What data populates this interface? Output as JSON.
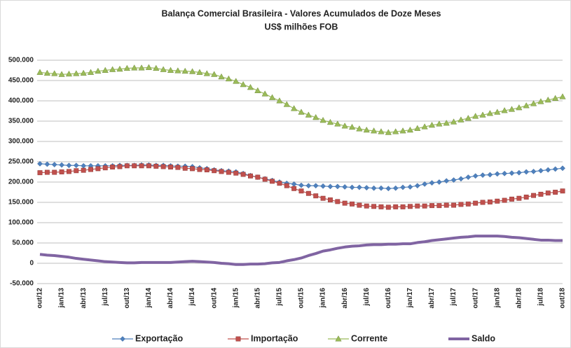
{
  "chart_data": {
    "type": "line",
    "title": "Balança Comercial Brasileira -  Valores Acumulados de Doze Meses",
    "subtitle": "US$ milhões FOB",
    "categories": [
      "out/12",
      null,
      null,
      "jan/13",
      null,
      null,
      "abr/13",
      null,
      null,
      "jul/13",
      null,
      null,
      "out/13",
      null,
      null,
      "jan/14",
      null,
      null,
      "abr/14",
      null,
      null,
      "jul/14",
      null,
      null,
      "out/14",
      null,
      null,
      "jan/15",
      null,
      null,
      "abr/15",
      null,
      null,
      "jul/15",
      null,
      null,
      "out/15",
      null,
      null,
      "jan/16",
      null,
      null,
      "abr/16",
      null,
      null,
      "jul/16",
      null,
      null,
      "out/16",
      null,
      null,
      "jan/17",
      null,
      null,
      "abr/17",
      null,
      null,
      "jul/17",
      null,
      null,
      "out/17",
      null,
      null,
      "jan/18",
      null,
      null,
      "abr/18",
      null,
      null,
      "jul/18",
      null,
      null,
      "out/18"
    ],
    "series": [
      {
        "name": "Exportação",
        "color": "#4f81bd",
        "marker": "diamond",
        "values": [
          245000,
          244000,
          243000,
          242000,
          241000,
          241000,
          240000,
          240000,
          240000,
          240000,
          240000,
          241000,
          241000,
          241000,
          242000,
          242000,
          241000,
          241000,
          240000,
          239000,
          239000,
          238000,
          235000,
          233000,
          230000,
          228000,
          227000,
          225000,
          221000,
          216000,
          212000,
          208000,
          204000,
          200000,
          197000,
          195000,
          192000,
          191000,
          191000,
          190000,
          189000,
          189000,
          188000,
          187000,
          187000,
          186000,
          185000,
          185000,
          184000,
          185000,
          187000,
          188000,
          191000,
          195000,
          198000,
          200000,
          203000,
          205000,
          208000,
          212000,
          215000,
          217000,
          218000,
          220000,
          221000,
          222000,
          223000,
          225000,
          226000,
          228000,
          230000,
          232000,
          234000
        ]
      },
      {
        "name": "Importação",
        "color": "#c0504d",
        "marker": "square",
        "values": [
          223000,
          224000,
          224000,
          225000,
          226000,
          228000,
          229000,
          231000,
          233000,
          235000,
          237000,
          238000,
          240000,
          240000,
          240000,
          240000,
          239000,
          238000,
          237000,
          236000,
          234000,
          233000,
          231000,
          230000,
          228000,
          226000,
          224000,
          222000,
          219000,
          215000,
          212000,
          207000,
          202000,
          197000,
          191000,
          184000,
          178000,
          172000,
          166000,
          160000,
          156000,
          152000,
          148000,
          146000,
          143000,
          141000,
          140000,
          139000,
          138000,
          139000,
          139000,
          140000,
          141000,
          141000,
          142000,
          142000,
          143000,
          143000,
          145000,
          146000,
          148000,
          150000,
          151000,
          153000,
          155000,
          158000,
          160000,
          163000,
          167000,
          170000,
          173000,
          175000,
          178000
        ]
      },
      {
        "name": "Corrente",
        "color": "#9bbb59",
        "marker": "triangle",
        "values": [
          470000,
          468000,
          467000,
          465000,
          466000,
          467000,
          468000,
          470000,
          473000,
          475000,
          477000,
          478000,
          480000,
          481000,
          481000,
          482000,
          480000,
          477000,
          475000,
          474000,
          473000,
          472000,
          470000,
          467000,
          465000,
          459000,
          454000,
          448000,
          440000,
          433000,
          425000,
          417000,
          408000,
          400000,
          391000,
          381000,
          372000,
          365000,
          359000,
          352000,
          347000,
          343000,
          338000,
          335000,
          331000,
          328000,
          326000,
          324000,
          322000,
          324000,
          326000,
          328000,
          332000,
          336000,
          340000,
          343000,
          345000,
          348000,
          353000,
          357000,
          362000,
          365000,
          369000,
          372000,
          376000,
          379000,
          383000,
          388000,
          393000,
          398000,
          402000,
          406000,
          410000
        ]
      },
      {
        "name": "Saldo",
        "color": "#8064a2",
        "marker": "none",
        "values": [
          22000,
          20000,
          19000,
          17000,
          15000,
          12000,
          10000,
          8000,
          6000,
          4000,
          3000,
          2000,
          1000,
          1000,
          2000,
          2000,
          2000,
          2000,
          2000,
          3000,
          4000,
          5000,
          4000,
          3000,
          2000,
          0,
          -1000,
          -3000,
          -3000,
          -2000,
          -2000,
          -1000,
          1000,
          2000,
          6000,
          9000,
          13000,
          19000,
          24000,
          30000,
          33000,
          37000,
          40000,
          42000,
          43000,
          45000,
          46000,
          46000,
          47000,
          47000,
          48000,
          48000,
          51000,
          53000,
          56000,
          58000,
          60000,
          62000,
          64000,
          65000,
          67000,
          67000,
          67000,
          67000,
          66000,
          64000,
          63000,
          61000,
          59000,
          57000,
          57000,
          56000,
          56000
        ]
      }
    ],
    "ylim": [
      -50000,
      500000
    ],
    "yticks": [
      {
        "value": -50000,
        "label": "-50.000"
      },
      0,
      {
        "value": 50000,
        "label": "50.000"
      },
      {
        "value": 100000,
        "label": "100.000"
      },
      {
        "value": 150000,
        "label": "150.000"
      },
      {
        "value": 200000,
        "label": "200.000"
      },
      {
        "value": 250000,
        "label": "250.000"
      },
      {
        "value": 300000,
        "label": "300.000"
      },
      {
        "value": 350000,
        "label": "350.000"
      },
      {
        "value": 400000,
        "label": "400.000"
      },
      {
        "value": 450000,
        "label": "450.000"
      },
      {
        "value": 500000,
        "label": "500.000"
      }
    ],
    "grid": true,
    "legend": "bottom"
  }
}
